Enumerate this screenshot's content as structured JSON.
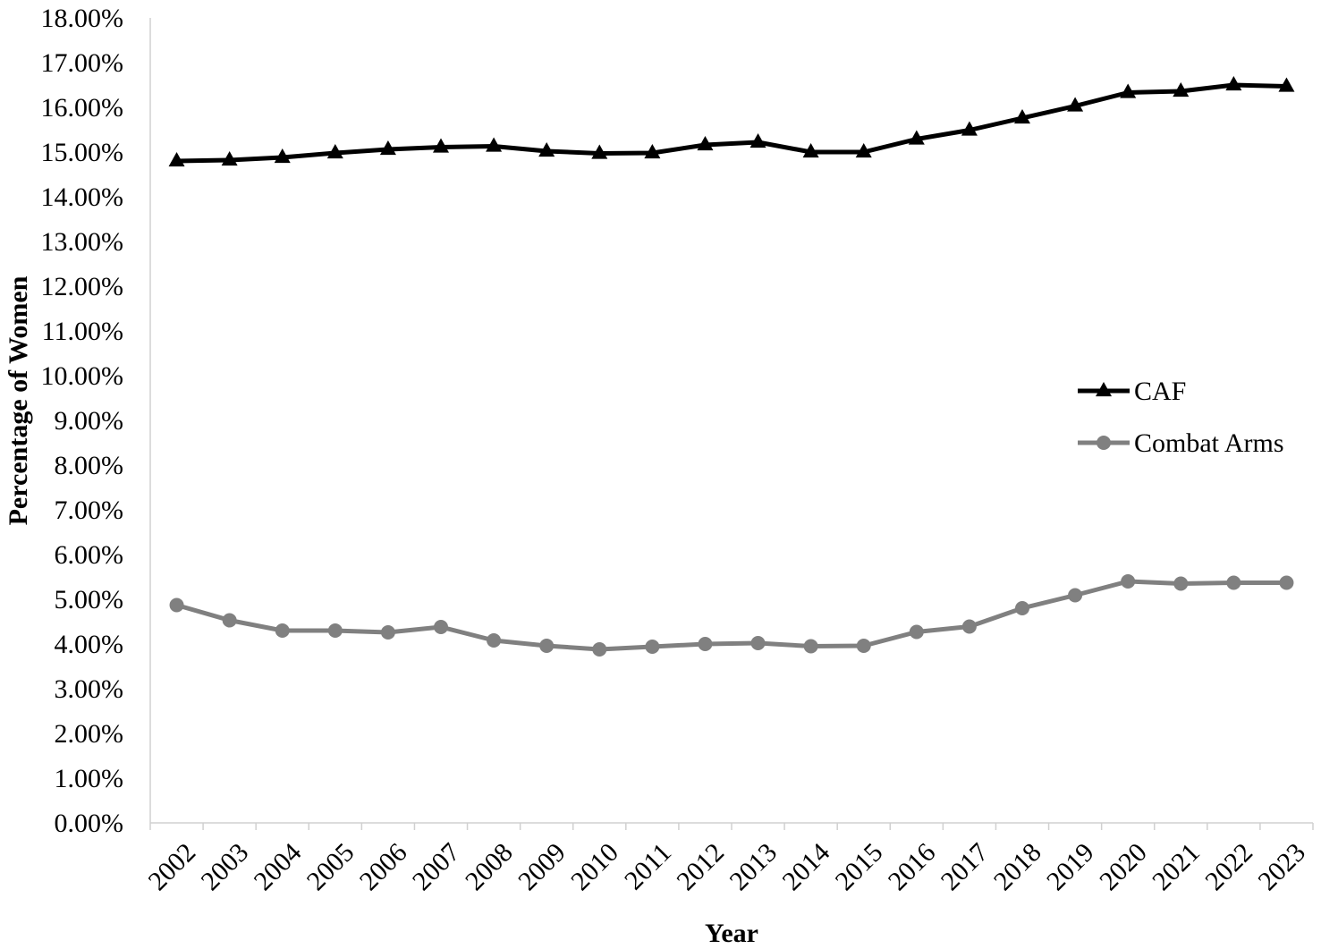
{
  "chart_data": {
    "type": "line",
    "title": "",
    "xlabel": "Year",
    "ylabel": "Percentage of Women",
    "ylim": [
      0,
      18
    ],
    "y_ticks": [
      0,
      1,
      2,
      3,
      4,
      5,
      6,
      7,
      8,
      9,
      10,
      11,
      12,
      13,
      14,
      15,
      16,
      17,
      18
    ],
    "y_tick_labels": [
      "0.00%",
      "1.00%",
      "2.00%",
      "3.00%",
      "4.00%",
      "5.00%",
      "6.00%",
      "7.00%",
      "8.00%",
      "9.00%",
      "10.00%",
      "11.00%",
      "12.00%",
      "13.00%",
      "14.00%",
      "15.00%",
      "16.00%",
      "17.00%",
      "18.00%"
    ],
    "grid": false,
    "legend_position": "right",
    "categories": [
      "2002",
      "2003",
      "2004",
      "2005",
      "2006",
      "2007",
      "2008",
      "2009",
      "2010",
      "2011",
      "2012",
      "2013",
      "2014",
      "2015",
      "2016",
      "2017",
      "2018",
      "2019",
      "2020",
      "2021",
      "2022",
      "2023"
    ],
    "series": [
      {
        "name": "CAF",
        "marker": "triangle",
        "color": "#000000",
        "values": [
          14.8,
          14.82,
          14.88,
          14.98,
          15.06,
          15.11,
          15.13,
          15.02,
          14.97,
          14.98,
          15.16,
          15.22,
          15.0,
          15.0,
          15.29,
          15.49,
          15.76,
          16.03,
          16.33,
          16.36,
          16.5,
          16.47
        ]
      },
      {
        "name": "Combat Arms",
        "marker": "circle",
        "color": "#808080",
        "values": [
          4.87,
          4.53,
          4.3,
          4.3,
          4.26,
          4.38,
          4.08,
          3.96,
          3.88,
          3.94,
          4.0,
          4.02,
          3.95,
          3.96,
          4.27,
          4.39,
          4.8,
          5.09,
          5.4,
          5.35,
          5.37,
          5.37
        ]
      }
    ]
  }
}
